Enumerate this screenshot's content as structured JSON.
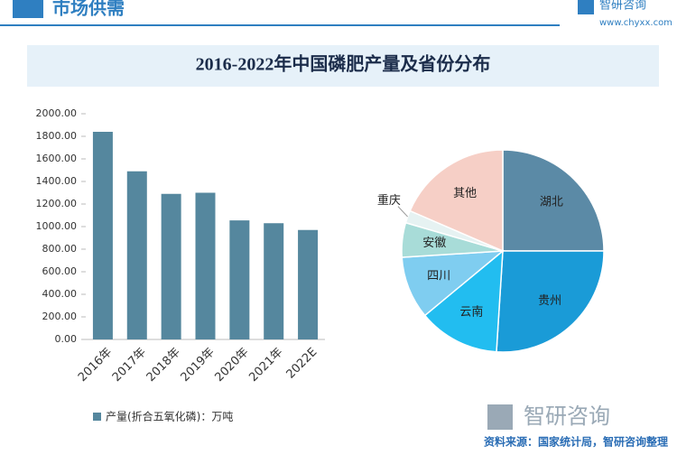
{
  "header": {
    "title": "市场供需",
    "logo": "智研咨询",
    "url": "www.chyxx.com"
  },
  "title": "2016-2022年中国磷肥产量及省份分布",
  "chart_data": [
    {
      "type": "bar",
      "categories": [
        "2016年",
        "2017年",
        "2018年",
        "2019年",
        "2020年",
        "2021年",
        "2022E"
      ],
      "series": [
        {
          "name": "产量(折合五氧化磷)：万吨",
          "color": "#55879e",
          "values": [
            1840,
            1490,
            1290,
            1300,
            1055,
            1030,
            970
          ]
        }
      ],
      "ylim": [
        0,
        2000
      ],
      "yticks": [
        {
          "value": 0,
          "label": "0.00"
        },
        {
          "value": 200,
          "label": "200.00"
        },
        {
          "value": 400,
          "label": "400.00"
        },
        {
          "value": 600,
          "label": "600.00"
        },
        {
          "value": 800,
          "label": "800.00"
        },
        {
          "value": 1000,
          "label": "1000.00"
        },
        {
          "value": 1200,
          "label": "1200.00"
        },
        {
          "value": 1400,
          "label": "1400.00"
        },
        {
          "value": 1600,
          "label": "1600.00"
        },
        {
          "value": 1800,
          "label": "1800.00"
        },
        {
          "value": 2000,
          "label": "2000.00"
        }
      ]
    },
    {
      "type": "pie",
      "categories": [
        "湖北",
        "贵州",
        "云南",
        "四川",
        "安徽",
        "重庆",
        "其他"
      ],
      "values": [
        25,
        26,
        13,
        10,
        5.5,
        2,
        18.5
      ],
      "colors": [
        "#5b8aa6",
        "#1a9bd7",
        "#22bdf0",
        "#7fcdf0",
        "#a8dcd8",
        "#e6f2f2",
        "#f6cfc6"
      ]
    }
  ],
  "footer": {
    "source": "资料来源：国家统计局，智研咨询整理",
    "logo": "智研咨询"
  }
}
